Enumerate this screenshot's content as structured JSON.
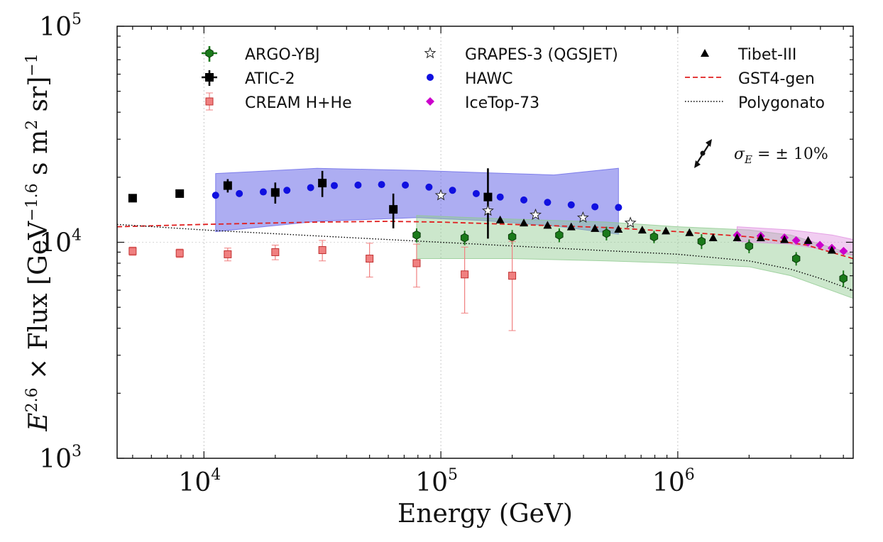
{
  "chart_data": {
    "type": "scatter",
    "xlabel": "Energy (GeV)",
    "ylabel_parts": {
      "base": "E",
      "exp1": "2.6",
      "mid": "× Flux [GeV",
      "exp2": "−1.6",
      "mid2": " s m",
      "exp3": "2",
      "mid3": " sr]",
      "exp4": "−1"
    },
    "x_scale": "log",
    "y_scale": "log",
    "xlim": [
      4300,
      5500000
    ],
    "ylim": [
      1000,
      100000
    ],
    "x_ticks": [
      {
        "value": 10000,
        "base": "10",
        "exp": "4"
      },
      {
        "value": 100000,
        "base": "10",
        "exp": "5"
      },
      {
        "value": 1000000,
        "base": "10",
        "exp": "6"
      }
    ],
    "y_ticks": [
      {
        "value": 1000,
        "base": "10",
        "exp": "3"
      },
      {
        "value": 10000,
        "base": "10",
        "exp": "4"
      },
      {
        "value": 100000,
        "base": "10",
        "exp": "5"
      }
    ],
    "grid": "vertical dotted at decades",
    "legend_position": "top",
    "colors": {
      "argo": "#1a7a1a",
      "atic": "#000000",
      "cream": "#f08080",
      "grapes": "#ffffff",
      "hawc": "#1010e0",
      "icetop": "#cc00cc",
      "tibet": "#000000",
      "gst": "#e02020",
      "poly": "#000000",
      "hawc_band": "#6a6ae8",
      "argo_band": "#8fc98f",
      "icetop_band": "#e090e0"
    },
    "series": [
      {
        "name": "ARGO-YBJ",
        "marker": "hexagon",
        "points": [
          {
            "x": 79000,
            "y": 10800,
            "err": 800
          },
          {
            "x": 126000,
            "y": 10500,
            "err": 800
          },
          {
            "x": 200000,
            "y": 10600,
            "err": 800
          },
          {
            "x": 316000,
            "y": 10800,
            "err": 800
          },
          {
            "x": 500000,
            "y": 11000,
            "err": 800
          },
          {
            "x": 794000,
            "y": 10600,
            "err": 700
          },
          {
            "x": 1260000,
            "y": 10100,
            "err": 800
          },
          {
            "x": 2000000,
            "y": 9600,
            "err": 700
          },
          {
            "x": 3160000,
            "y": 8400,
            "err": 600
          },
          {
            "x": 5000000,
            "y": 6800,
            "err": 600
          }
        ]
      },
      {
        "name": "ATIC-2",
        "marker": "square",
        "points": [
          {
            "x": 5000,
            "y": 16000,
            "err": 600
          },
          {
            "x": 7900,
            "y": 16800,
            "err": 700
          },
          {
            "x": 12600,
            "y": 18300,
            "err": 1300
          },
          {
            "x": 20000,
            "y": 17000,
            "err": 1900
          },
          {
            "x": 31600,
            "y": 18800,
            "err": 2600
          },
          {
            "x": 63000,
            "y": 14200,
            "err": 2600
          },
          {
            "x": 158000,
            "y": 16200,
            "err": 5800
          }
        ]
      },
      {
        "name": "CREAM H+He",
        "marker": "square-small",
        "points": [
          {
            "x": 5000,
            "y": 9100,
            "err": 400
          },
          {
            "x": 7900,
            "y": 8900,
            "err": 400
          },
          {
            "x": 12600,
            "y": 8800,
            "err": 600
          },
          {
            "x": 20000,
            "y": 9000,
            "err": 700
          },
          {
            "x": 31600,
            "y": 9200,
            "err": 1000
          },
          {
            "x": 50000,
            "y": 8400,
            "err": 1500
          },
          {
            "x": 79000,
            "y": 8000,
            "err": 1800
          },
          {
            "x": 126000,
            "y": 7100,
            "err": 2400
          },
          {
            "x": 200000,
            "y": 7000,
            "err": 3100
          }
        ]
      },
      {
        "name": "GRAPES-3 (QGSJET)",
        "marker": "star",
        "points": [
          {
            "x": 100000,
            "y": 16500
          },
          {
            "x": 158000,
            "y": 14000
          },
          {
            "x": 251000,
            "y": 13400
          },
          {
            "x": 398000,
            "y": 13000
          },
          {
            "x": 631000,
            "y": 12300
          }
        ]
      },
      {
        "name": "HAWC",
        "marker": "circle",
        "points": [
          {
            "x": 11200,
            "y": 16500
          },
          {
            "x": 14100,
            "y": 16800
          },
          {
            "x": 17800,
            "y": 17100
          },
          {
            "x": 22400,
            "y": 17400
          },
          {
            "x": 28200,
            "y": 17900
          },
          {
            "x": 35500,
            "y": 18300
          },
          {
            "x": 44700,
            "y": 18400
          },
          {
            "x": 56200,
            "y": 18500
          },
          {
            "x": 70800,
            "y": 18400
          },
          {
            "x": 89100,
            "y": 18000
          },
          {
            "x": 112000,
            "y": 17400
          },
          {
            "x": 141000,
            "y": 16800
          },
          {
            "x": 178000,
            "y": 16200
          },
          {
            "x": 224000,
            "y": 15700
          },
          {
            "x": 282000,
            "y": 15300
          },
          {
            "x": 355000,
            "y": 14900
          },
          {
            "x": 447000,
            "y": 14600
          },
          {
            "x": 562000,
            "y": 14500
          }
        ]
      },
      {
        "name": "IceTop-73",
        "marker": "diamond",
        "points": [
          {
            "x": 1780000,
            "y": 10800
          },
          {
            "x": 2240000,
            "y": 10700
          },
          {
            "x": 2820000,
            "y": 10500
          },
          {
            "x": 3160000,
            "y": 10200
          },
          {
            "x": 3550000,
            "y": 10000
          },
          {
            "x": 3980000,
            "y": 9700
          },
          {
            "x": 4470000,
            "y": 9400
          },
          {
            "x": 5010000,
            "y": 9100
          }
        ]
      },
      {
        "name": "Tibet-III",
        "marker": "triangle",
        "points": [
          {
            "x": 178000,
            "y": 12700
          },
          {
            "x": 224000,
            "y": 12300
          },
          {
            "x": 282000,
            "y": 12000
          },
          {
            "x": 355000,
            "y": 11800
          },
          {
            "x": 447000,
            "y": 11600
          },
          {
            "x": 562000,
            "y": 11500
          },
          {
            "x": 708000,
            "y": 11400
          },
          {
            "x": 891000,
            "y": 11300
          },
          {
            "x": 1120000,
            "y": 11100
          },
          {
            "x": 1410000,
            "y": 10500
          },
          {
            "x": 1780000,
            "y": 10500
          },
          {
            "x": 2240000,
            "y": 10500
          },
          {
            "x": 2820000,
            "y": 10300
          },
          {
            "x": 3550000,
            "y": 10200
          },
          {
            "x": 4470000,
            "y": 9200
          }
        ]
      }
    ],
    "lines": [
      {
        "name": "GST4-gen",
        "style": "dashed",
        "points": [
          [
            4300,
            11800
          ],
          [
            10000,
            12100
          ],
          [
            30000,
            12400
          ],
          [
            60000,
            12500
          ],
          [
            100000,
            12400
          ],
          [
            200000,
            12100
          ],
          [
            500000,
            11700
          ],
          [
            1000000,
            11200
          ],
          [
            2000000,
            10600
          ],
          [
            3500000,
            9700
          ],
          [
            5500000,
            8400
          ]
        ]
      },
      {
        "name": "Polygonato",
        "style": "dotted",
        "points": [
          [
            4300,
            12100
          ],
          [
            10000,
            11400
          ],
          [
            30000,
            10700
          ],
          [
            100000,
            10000
          ],
          [
            300000,
            9400
          ],
          [
            1000000,
            8800
          ],
          [
            2000000,
            8200
          ],
          [
            3000000,
            7500
          ],
          [
            4000000,
            6800
          ],
          [
            5500000,
            6000
          ]
        ]
      }
    ],
    "bands": [
      {
        "series": "HAWC",
        "upper": [
          [
            11200,
            20800
          ],
          [
            30000,
            22000
          ],
          [
            80000,
            21500
          ],
          [
            150000,
            21000
          ],
          [
            300000,
            20500
          ],
          [
            562000,
            22000
          ]
        ],
        "lower": [
          [
            11200,
            11200
          ],
          [
            30000,
            12500
          ],
          [
            80000,
            13000
          ],
          [
            150000,
            12600
          ],
          [
            300000,
            11900
          ],
          [
            562000,
            10900
          ]
        ]
      },
      {
        "series": "ARGO-YBJ",
        "upper": [
          [
            79000,
            13300
          ],
          [
            200000,
            12800
          ],
          [
            500000,
            12400
          ],
          [
            1000000,
            11800
          ],
          [
            2000000,
            11400
          ],
          [
            3000000,
            10800
          ],
          [
            5500000,
            8800
          ]
        ],
        "lower": [
          [
            79000,
            8400
          ],
          [
            200000,
            8400
          ],
          [
            500000,
            8200
          ],
          [
            1000000,
            8000
          ],
          [
            2000000,
            7700
          ],
          [
            3000000,
            7000
          ],
          [
            5500000,
            5500
          ]
        ]
      },
      {
        "series": "IceTop-73",
        "upper": [
          [
            1780000,
            11800
          ],
          [
            3000000,
            11400
          ],
          [
            4500000,
            10800
          ],
          [
            5500000,
            10300
          ]
        ],
        "lower": [
          [
            1780000,
            10100
          ],
          [
            3000000,
            9800
          ],
          [
            4500000,
            9100
          ],
          [
            5500000,
            8700
          ]
        ]
      }
    ],
    "legend": {
      "col1": [
        "ARGO-YBJ",
        "ATIC-2",
        "CREAM H+He"
      ],
      "col2": [
        "GRAPES-3 (QGSJET)",
        "HAWC",
        "IceTop-73"
      ],
      "col3": [
        "Tibet-III",
        "GST4-gen",
        "Polygonato"
      ]
    },
    "annotation": "σ_E = ± 10%",
    "annotation_parts": {
      "sym": "σ",
      "sub": "E",
      "rest": " = ± 10%"
    }
  }
}
